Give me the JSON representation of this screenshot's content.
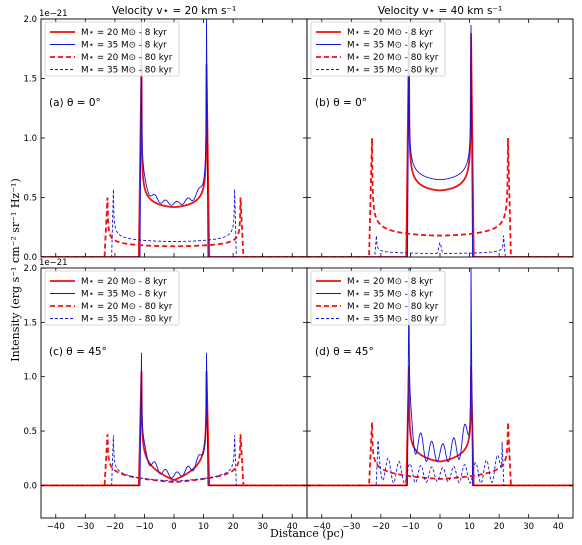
{
  "figure": {
    "ylabel": "Intensity (erg s$^{-1}$ cm$^{-2}$ sr$^{-1}$ Hz$^{-1}$)",
    "ylabel_display": "Intensity (erg s⁻¹ cm⁻² sr⁻¹ Hz⁻¹)",
    "xlabel": "Distance (pc)",
    "offset_text": "1e−21"
  },
  "colors": {
    "red": "#ee1111",
    "blue": "#1111dd"
  },
  "legend_entries": [
    {
      "label": "M⋆ = 20 M⊙ - 8 kyr",
      "color": "#ee1111",
      "style": "solid",
      "width": "thick"
    },
    {
      "label": "M⋆ = 35 M⊙ - 8 kyr",
      "color": "#1111dd",
      "style": "solid",
      "width": "thin"
    },
    {
      "label": "M⋆ = 20 M⊙ - 80 kyr",
      "color": "#ee1111",
      "style": "dashed",
      "width": "thick"
    },
    {
      "label": "M⋆ = 35 M⊙ - 80 kyr",
      "color": "#1111dd",
      "style": "dashed",
      "width": "thin"
    }
  ],
  "chart_data": [
    {
      "type": "line",
      "panel": "a",
      "title": "Velocity v⋆ = 20 km s⁻¹",
      "annotation": "(a) θ = 0°",
      "xlim": [
        -45,
        45
      ],
      "ylim": [
        0,
        2.0
      ],
      "ylim_display": "×1e-21",
      "xticks": [],
      "yticks": [
        "0.0",
        "0.5",
        "1.0",
        "1.5",
        "2.0"
      ],
      "series": [
        {
          "legend_index": 0,
          "curve": {
            "kind": "shell",
            "edge": 11.0,
            "base": 0.42,
            "peak": 1.62,
            "rise": 0.9
          }
        },
        {
          "legend_index": 1,
          "curve": {
            "kind": "shell",
            "edge": 11.0,
            "base": 0.45,
            "peak": 2.0,
            "rise": 0.5,
            "ripple": 0.03
          }
        },
        {
          "legend_index": 2,
          "curve": {
            "kind": "shell",
            "edge": 22.5,
            "base": 0.09,
            "peak": 0.5,
            "rise": 1.0
          }
        },
        {
          "legend_index": 3,
          "curve": {
            "kind": "shell",
            "edge": 20.5,
            "base": 0.13,
            "peak": 0.57,
            "rise": 0.6
          }
        }
      ]
    },
    {
      "type": "line",
      "panel": "b",
      "title": "Velocity v⋆ = 40 km s⁻¹",
      "annotation": "(b) θ = 0°",
      "xlim": [
        -45,
        45
      ],
      "ylim": [
        0,
        2.0
      ],
      "xticks": [],
      "yticks": [],
      "series": [
        {
          "legend_index": 0,
          "curve": {
            "kind": "shell",
            "edge": 10.5,
            "base": 0.56,
            "peak": 1.88,
            "rise": 0.9
          }
        },
        {
          "legend_index": 1,
          "curve": {
            "kind": "shell",
            "edge": 10.5,
            "base": 0.65,
            "peak": 1.95,
            "rise": 0.5
          }
        },
        {
          "legend_index": 2,
          "curve": {
            "kind": "shell",
            "edge": 23.0,
            "base": 0.18,
            "peak": 1.0,
            "rise": 1.0
          }
        },
        {
          "legend_index": 3,
          "curve": {
            "kind": "shell",
            "edge": 21.5,
            "base": 0.03,
            "peak": 0.18,
            "rise": 0.6,
            "center_bump": 0.09
          }
        }
      ]
    },
    {
      "type": "line",
      "panel": "c",
      "annotation": "(c)  θ = 45°",
      "xlim": [
        -45,
        45
      ],
      "ylim": [
        -0.3,
        2.0
      ],
      "xticks": [
        "−40",
        "−30",
        "−20",
        "−10",
        "0",
        "10",
        "20",
        "30",
        "40"
      ],
      "yticks": [
        "0.0",
        "0.5",
        "1.0",
        "1.5",
        "2.0"
      ],
      "series": [
        {
          "legend_index": 0,
          "curve": {
            "kind": "shell",
            "edge": 11.0,
            "base": 0.05,
            "peak": 1.05,
            "rise": 0.9,
            "shape": 1.8
          }
        },
        {
          "legend_index": 1,
          "curve": {
            "kind": "shell",
            "edge": 11.0,
            "base": 0.09,
            "peak": 1.22,
            "rise": 0.5,
            "shape": 1.6,
            "ripple": 0.05
          }
        },
        {
          "legend_index": 2,
          "curve": {
            "kind": "shell",
            "edge": 22.5,
            "base": 0.03,
            "peak": 0.47,
            "rise": 1.0,
            "shape": 1.8
          }
        },
        {
          "legend_index": 3,
          "curve": {
            "kind": "shell",
            "edge": 20.5,
            "base": 0.04,
            "peak": 0.46,
            "rise": 0.6,
            "shape": 1.6
          }
        }
      ]
    },
    {
      "type": "line",
      "panel": "d",
      "annotation": "(d)  θ = 45°",
      "xlim": [
        -45,
        45
      ],
      "ylim": [
        -0.3,
        2.0
      ],
      "xticks": [
        "−40",
        "−30",
        "−20",
        "−10",
        "0",
        "10",
        "20",
        "30",
        "40"
      ],
      "yticks": [],
      "series": [
        {
          "legend_index": 0,
          "curve": {
            "kind": "shell",
            "edge": 10.5,
            "base": 0.22,
            "peak": 1.1,
            "rise": 0.9,
            "shape": 1.5
          }
        },
        {
          "legend_index": 1,
          "curve": {
            "kind": "shell",
            "edge": 10.5,
            "base": 0.3,
            "peak": 2.0,
            "rise": 0.5,
            "shape": 1.2,
            "ripple": 0.15
          }
        },
        {
          "legend_index": 2,
          "curve": {
            "kind": "shell",
            "edge": 23.0,
            "base": 0.06,
            "peak": 0.58,
            "rise": 1.0,
            "shape": 1.6
          }
        },
        {
          "legend_index": 3,
          "curve": {
            "kind": "shell",
            "edge": 21.0,
            "base": 0.1,
            "peak": 0.4,
            "rise": 0.6,
            "shape": 1.4,
            "ripple": 0.12
          }
        }
      ]
    }
  ]
}
